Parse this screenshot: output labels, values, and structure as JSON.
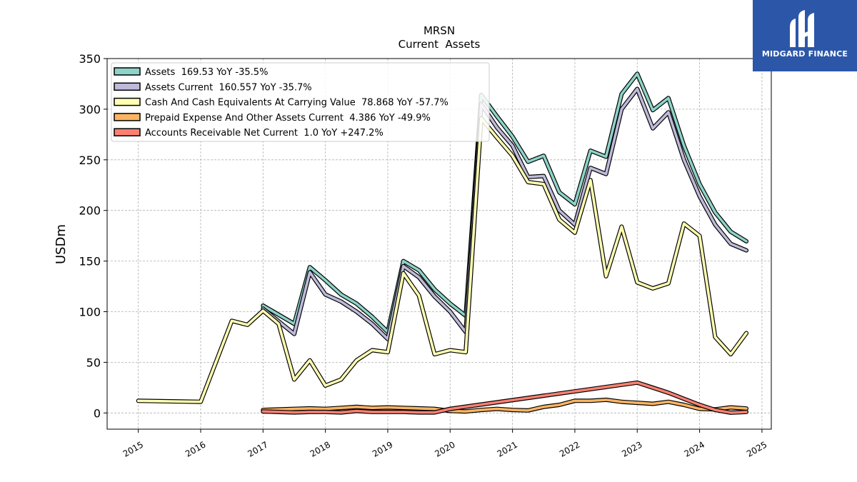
{
  "brand": {
    "name": "MIDGARD FINANCE",
    "bg_color": "#2c57a8",
    "icon": "midgard-logo-icon"
  },
  "chart_data": {
    "type": "line",
    "title": "MRSN",
    "subtitle": "Current  Assets",
    "ylabel": "USDm",
    "xlabel": "",
    "xlim": [
      2014.5,
      2025.15
    ],
    "ylim": [
      -16,
      350
    ],
    "yticks": [
      0,
      50,
      100,
      150,
      200,
      250,
      300,
      350
    ],
    "xticks": [
      2015,
      2016,
      2017,
      2018,
      2019,
      2020,
      2021,
      2022,
      2023,
      2024,
      2025
    ],
    "xtick_labels": [
      "2015",
      "2016",
      "2017",
      "2018",
      "2019",
      "2020",
      "2021",
      "2022",
      "2023",
      "2024",
      "2025"
    ],
    "grid": true,
    "legend_position": "top-left",
    "series": [
      {
        "name": "Assets  169.53 YoY -35.5%",
        "color": "#8dd3c7",
        "x": [
          2017.0,
          2017.5,
          2017.75,
          2018.0,
          2018.25,
          2018.5,
          2018.75,
          2019.0,
          2019.25,
          2019.5,
          2019.75,
          2020.0,
          2020.25,
          2020.5,
          2020.75,
          2021.0,
          2021.25,
          2021.5,
          2021.75,
          2022.0,
          2022.25,
          2022.5,
          2022.75,
          2023.0,
          2023.25,
          2023.5,
          2023.75,
          2024.0,
          2024.25,
          2024.5,
          2024.75
        ],
        "y": [
          106,
          88,
          144,
          131,
          117,
          108,
          95,
          80,
          150,
          141,
          122,
          108,
          96,
          314,
          293,
          273,
          248,
          254,
          218,
          206,
          259,
          253,
          315,
          335,
          299,
          311,
          264,
          226,
          198,
          179,
          169.53
        ]
      },
      {
        "name": "Assets Current  160.557 YoY -35.7%",
        "color": "#bebada",
        "x": [
          2017.0,
          2017.5,
          2017.75,
          2018.0,
          2018.25,
          2018.5,
          2018.75,
          2019.0,
          2019.25,
          2019.5,
          2019.75,
          2020.0,
          2020.25,
          2020.5,
          2020.75,
          2021.0,
          2021.25,
          2021.5,
          2021.75,
          2022.0,
          2022.25,
          2022.5,
          2022.75,
          2023.0,
          2023.25,
          2023.5,
          2023.75,
          2024.0,
          2024.25,
          2024.5,
          2024.75
        ],
        "y": [
          103,
          78,
          139,
          117,
          110,
          100,
          88,
          73,
          145,
          134,
          115,
          100,
          80,
          305,
          282,
          264,
          233,
          234,
          200,
          186,
          242,
          236,
          300,
          320,
          281,
          297,
          250,
          214,
          186,
          167,
          160.557
        ]
      },
      {
        "name": "Cash And Cash Equivalents At Carrying Value  78.868 YoY -57.7%",
        "color": "#ffffb3",
        "x": [
          2015.0,
          2016.0,
          2016.5,
          2016.75,
          2017.0,
          2017.25,
          2017.5,
          2017.75,
          2018.0,
          2018.25,
          2018.5,
          2018.75,
          2019.0,
          2019.25,
          2019.5,
          2019.75,
          2020.0,
          2020.25,
          2020.5,
          2020.75,
          2021.0,
          2021.25,
          2021.5,
          2021.75,
          2022.0,
          2022.25,
          2022.5,
          2022.75,
          2023.0,
          2023.25,
          2023.5,
          2023.75,
          2024.0,
          2024.25,
          2024.5,
          2024.75
        ],
        "y": [
          12,
          11,
          91,
          87,
          101,
          88,
          33,
          52,
          27,
          33,
          52,
          62,
          60,
          138,
          116,
          58,
          62,
          60,
          291,
          272,
          254,
          228,
          226,
          191,
          178,
          230,
          135,
          184,
          129,
          123,
          128,
          187,
          175,
          75,
          58,
          78.868
        ]
      },
      {
        "name": "Prepaid Expense And Other Assets Current  4.386 YoY -49.9%",
        "color": "#fdb462",
        "x": [
          2017.0,
          2017.5,
          2017.75,
          2018.0,
          2018.25,
          2018.5,
          2018.75,
          2019.0,
          2019.25,
          2019.5,
          2019.75,
          2020.0,
          2020.25,
          2020.5,
          2020.75,
          2021.0,
          2021.25,
          2021.5,
          2021.75,
          2022.0,
          2022.25,
          2022.5,
          2022.75,
          2023.0,
          2023.25,
          2023.5,
          2023.75,
          2024.0,
          2024.25,
          2024.5,
          2024.75
        ],
        "y": [
          3,
          4,
          4.5,
          4,
          5,
          6,
          5,
          5.5,
          5,
          4.5,
          4,
          2,
          1.5,
          3,
          4,
          3,
          2.5,
          6,
          8,
          12,
          12,
          13,
          11,
          10,
          9,
          11,
          8,
          4,
          3.5,
          5.5,
          4.386
        ]
      },
      {
        "name": "Accounts Receivable Net Current  1.0 YoY +247.2%",
        "color": "#fb8072",
        "x": [
          2017.0,
          2017.5,
          2017.75,
          2018.0,
          2018.25,
          2018.5,
          2018.75,
          2019.0,
          2019.25,
          2019.5,
          2019.75,
          2020.0,
          2023.0,
          2023.25,
          2023.5,
          2023.75,
          2024.0,
          2024.25,
          2024.5,
          2024.75
        ],
        "y": [
          1.5,
          0.5,
          1,
          1,
          0.5,
          2,
          1,
          1,
          1,
          0.5,
          0.5,
          4,
          30,
          25,
          20,
          14,
          8,
          3,
          0.3,
          1.0
        ]
      }
    ]
  }
}
